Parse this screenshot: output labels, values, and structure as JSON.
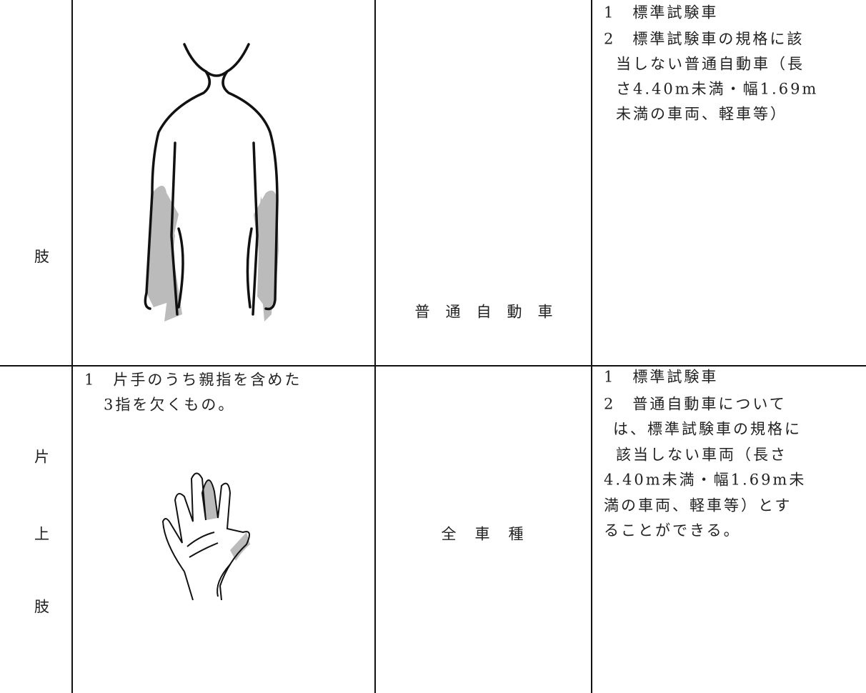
{
  "table": {
    "rows": [
      {
        "label": [
          "肢"
        ],
        "vehicle": "普通自動車",
        "notes": [
          "1　標準試験車",
          "2　標準試験車の規格に該",
          "当しない普通自動車（長",
          "さ4.40m未満・幅1.69m",
          "未満の車両、軽車等）"
        ]
      },
      {
        "label": [
          "片",
          "上",
          "肢"
        ],
        "condition": [
          "1　片手のうち親指を含めた",
          "3指を欠くもの。"
        ],
        "vehicle": "全車種",
        "notes": [
          "1　標準試験車",
          "2　普通自動車について",
          "は、標準試験車の規格に",
          "該当しない車両（長さ",
          "4.40m未満・幅1.69m未",
          "満の車両、軽車等）とす",
          "ることができる。"
        ]
      }
    ]
  }
}
